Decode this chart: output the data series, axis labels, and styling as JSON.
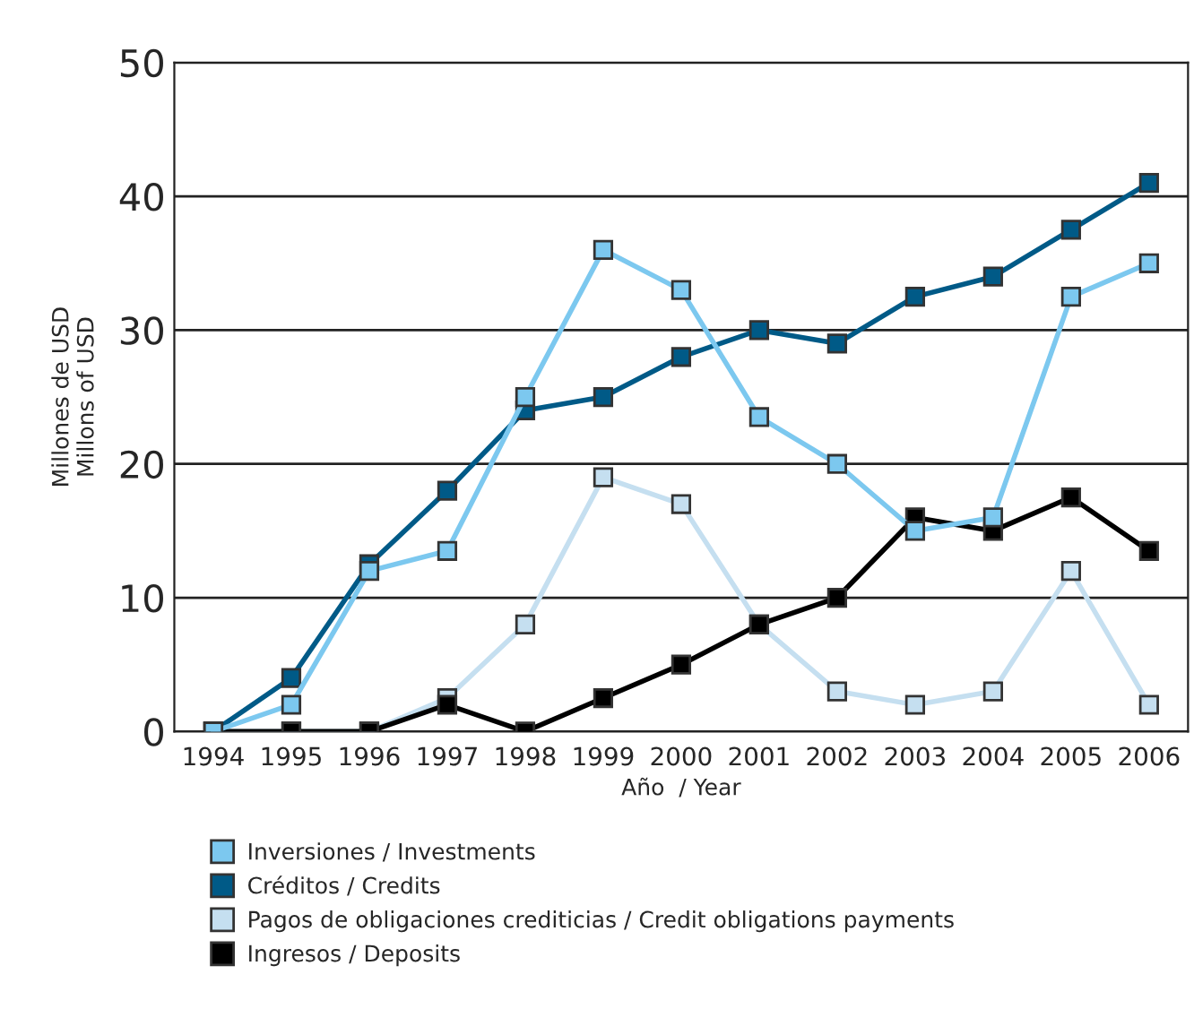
{
  "chart_data": {
    "type": "line",
    "xlabel": "Año  / Year",
    "ylabel": "Millones de USD\nMillons of USD",
    "categories": [
      "1994",
      "1995",
      "1996",
      "1997",
      "1998",
      "1999",
      "2000",
      "2001",
      "2002",
      "2003",
      "2004",
      "2005",
      "2006"
    ],
    "series": [
      {
        "name": "Inversiones / Investments",
        "color": "#7cc8ef",
        "values": [
          0,
          2,
          12,
          13.5,
          25,
          36,
          33,
          23.5,
          20,
          15,
          16,
          32.5,
          35
        ]
      },
      {
        "name": "Créditos / Credits",
        "color": "#005a87",
        "values": [
          0,
          4,
          12.5,
          18,
          24,
          25,
          28,
          30,
          29,
          32.5,
          34,
          37.5,
          41
        ]
      },
      {
        "name": "Pagos de obligaciones crediticias / Credit obligations payments",
        "color": "#c5dff0",
        "values": [
          0,
          0,
          0,
          2.5,
          8,
          19,
          17,
          8,
          3,
          2,
          3,
          12,
          2
        ]
      },
      {
        "name": "Ingresos / Deposits",
        "color": "#000000",
        "values": [
          0,
          0,
          0,
          2,
          0,
          2.5,
          5,
          8,
          10,
          16,
          15,
          17.5,
          13.5
        ]
      }
    ],
    "ylim": [
      0,
      50
    ],
    "yticks": [
      0,
      10,
      20,
      30,
      40,
      50
    ],
    "grid": "y",
    "legend": "bottom",
    "marker": "square",
    "line_style": "solid"
  }
}
